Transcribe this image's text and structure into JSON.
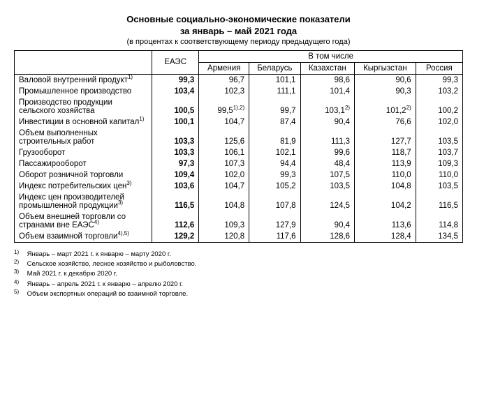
{
  "title_line1": "Основные социально-экономические показатели",
  "title_line2": "за январь – май 2021 года",
  "subtitle": "(в процентах к соответствующему периоду предыдущего года)",
  "columns": {
    "eaes": "ЕАЭС",
    "group": "В том числе",
    "c1": "Армения",
    "c2": "Беларусь",
    "c3": "Казахстан",
    "c4": "Кыргызстан",
    "c5": "Россия"
  },
  "rows": [
    {
      "label": "Валовой внутренний продукт",
      "sup": "1)",
      "eaes": "99,3",
      "v": [
        "96,7",
        "101,1",
        "98,6",
        "90,6",
        "99,3"
      ]
    },
    {
      "label": "Промышленное производство",
      "sup": "",
      "eaes": "103,4",
      "v": [
        "102,3",
        "111,1",
        "101,4",
        "90,3",
        "103,2"
      ]
    },
    {
      "label": "Производство продукции сельского хозяйства",
      "sup": "",
      "eaes": "100,5",
      "v": [
        "99,5<sup>1),2)</sup>",
        "99,7",
        "103,1<sup>2)</sup>",
        "101,2<sup>2)</sup>",
        "100,2"
      ]
    },
    {
      "label": "Инвестиции в основной капитал",
      "sup": "1)",
      "eaes": "100,1",
      "v": [
        "104,7",
        "87,4",
        "90,4",
        "76,6",
        "102,0"
      ]
    },
    {
      "label": "Объем выполненных строительных работ",
      "sup": "",
      "eaes": "103,3",
      "v": [
        "125,6",
        "81,9",
        "111,3",
        "127,7",
        "103,5"
      ]
    },
    {
      "label": "Грузооборот",
      "sup": "",
      "eaes": "103,3",
      "v": [
        "106,1",
        "102,1",
        "99,6",
        "118,7",
        "103,7"
      ]
    },
    {
      "label": "Пассажирооборот",
      "sup": "",
      "eaes": "97,3",
      "v": [
        "107,3",
        "94,4",
        "48,4",
        "113,9",
        "109,3"
      ]
    },
    {
      "label": "Оборот розничной торговли",
      "sup": "",
      "eaes": "109,4",
      "v": [
        "102,0",
        "99,3",
        "107,5",
        "110,0",
        "110,0"
      ]
    },
    {
      "label": "Индекс потребительских цен",
      "sup": "3)",
      "eaes": "103,6",
      "v": [
        "104,7",
        "105,2",
        "103,5",
        "104,8",
        "103,5"
      ]
    },
    {
      "label": "Индекс цен производителей промышленной продукции",
      "sup": "3)",
      "eaes": "116,5",
      "v": [
        "104,8",
        "107,8",
        "124,5",
        "104,2",
        "116,5"
      ]
    },
    {
      "label": "Объем внешней торговли со странами вне ЕАЭС",
      "sup": "4)",
      "eaes": "112,6",
      "v": [
        "109,3",
        "127,9",
        "90,4",
        "113,6",
        "114,8"
      ]
    },
    {
      "label": "Объем взаимной торговли",
      "sup": "4),5)",
      "eaes": "129,2",
      "v": [
        "120,8",
        "117,6",
        "128,6",
        "128,4",
        "134,5"
      ]
    }
  ],
  "footnotes": [
    {
      "n": "1)",
      "t": "Январь – март 2021 г. к январю – марту 2020 г."
    },
    {
      "n": "2)",
      "t": "Сельское хозяйство, лесное хозяйство и рыболовство."
    },
    {
      "n": "3)",
      "t": "Май 2021 г. к декабрю 2020 г."
    },
    {
      "n": "4)",
      "t": "Январь – апрель 2021 г. к январю – апрелю 2020 г."
    },
    {
      "n": "5)",
      "t": "Объем экспортных операций во взаимной торговле."
    }
  ],
  "col_widths": [
    "170px",
    "58px",
    "62px",
    "62px",
    "66px",
    "72px",
    "58px"
  ]
}
